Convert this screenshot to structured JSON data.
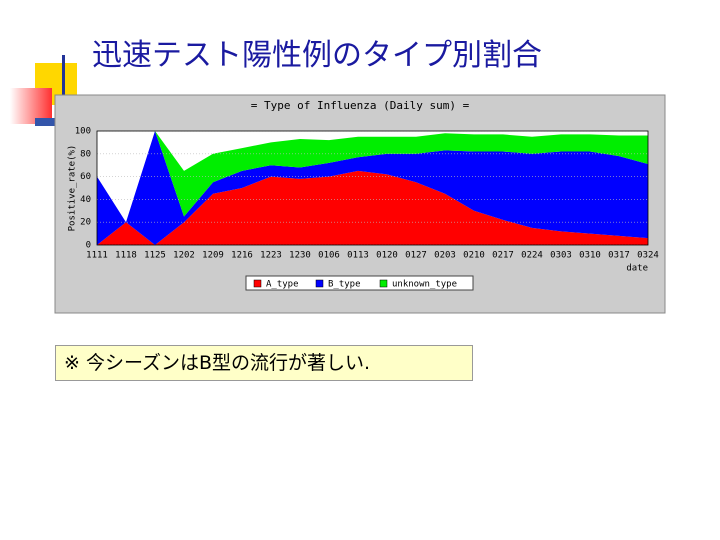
{
  "slide": {
    "title": "迅速テスト陽性例のタイプ別割合",
    "note": "※ 今シーズンはB型の流行が著しい."
  },
  "chart_data": {
    "type": "stacked-area",
    "title": "= Type of Influenza (Daily sum) =",
    "ylabel": "Positive_rate(%)",
    "xlabel": "date",
    "categories": [
      "1111",
      "1118",
      "1125",
      "1202",
      "1209",
      "1216",
      "1223",
      "1230",
      "0106",
      "0113",
      "0120",
      "0127",
      "0203",
      "0210",
      "0217",
      "0224",
      "0303",
      "0310",
      "0317",
      "0324"
    ],
    "series": [
      {
        "name": "A_type",
        "color": "#ff0000",
        "values": [
          0,
          20,
          0,
          20,
          45,
          50,
          60,
          58,
          60,
          65,
          62,
          55,
          45,
          30,
          22,
          15,
          12,
          10,
          8,
          6
        ]
      },
      {
        "name": "B_type",
        "color": "#0000ff",
        "values": [
          60,
          0,
          100,
          5,
          10,
          15,
          10,
          10,
          12,
          12,
          18,
          25,
          38,
          52,
          60,
          65,
          70,
          72,
          70,
          65
        ]
      },
      {
        "name": "unknown_type",
        "color": "#00ee00",
        "values": [
          0,
          0,
          0,
          40,
          25,
          20,
          20,
          25,
          20,
          18,
          15,
          15,
          15,
          15,
          15,
          15,
          15,
          15,
          18,
          25
        ]
      }
    ],
    "ylim": [
      0,
      100
    ],
    "yticks": [
      0,
      20,
      40,
      60,
      80,
      100
    ],
    "grid": true
  }
}
